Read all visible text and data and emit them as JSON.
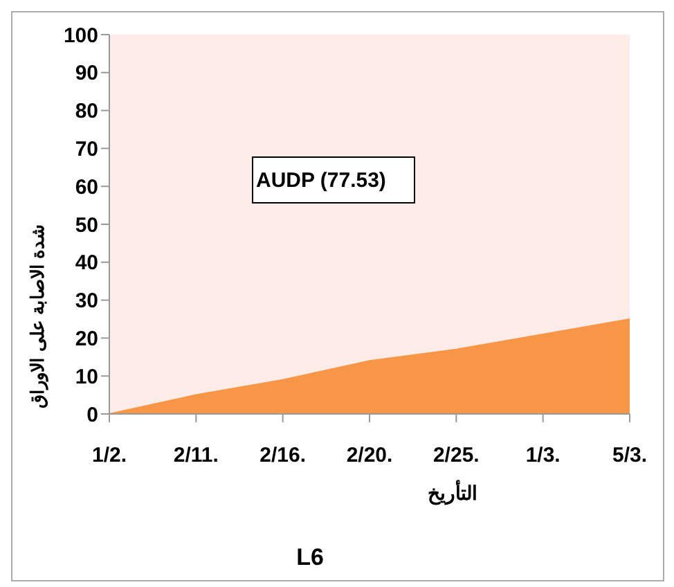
{
  "chart_data": {
    "type": "area",
    "title": "L6",
    "xlabel": "التأريخ",
    "ylabel": "شدة الاصابة  على الاوراق",
    "categories": [
      "1/2.",
      "2/11.",
      "2/16.",
      "2/20.",
      "2/25.",
      "1/3.",
      "5/3."
    ],
    "series": [
      {
        "color": "#f79646",
        "values": [
          0,
          5,
          9,
          14,
          17,
          21,
          25
        ]
      }
    ],
    "ylim": [
      0,
      100
    ],
    "yticks": [
      0,
      10,
      20,
      30,
      40,
      50,
      60,
      70,
      80,
      90,
      100
    ],
    "annotations": [
      "AUDP (77.53)"
    ],
    "legend": false
  }
}
